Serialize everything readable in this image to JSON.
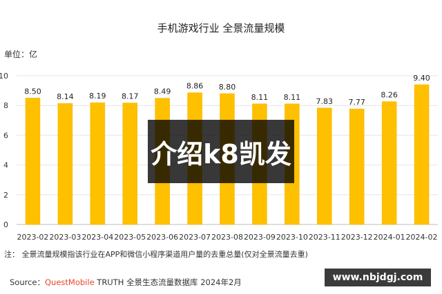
{
  "header": {
    "title": "手机游戏行业 全景流量规模",
    "unit": "单位：亿"
  },
  "footer": {
    "note": "注：  全景流量规模指该行业在APP和微信小程序渠道用户量的去重总量(仅对全景流量去重)",
    "source_prefix": "Source：",
    "source_brand": "QuestMobile",
    "source_rest": " TRUTH 全景生态流量数据库 2024年2月"
  },
  "overlay": {
    "text": "介绍k8凯发"
  },
  "badge": {
    "text": "www.nbjdgj.com"
  },
  "colors": {
    "bar": "#FFC000",
    "bar_edge": "#F5B400",
    "grid": "#e6e6e6"
  },
  "chart_data": {
    "type": "bar",
    "title": "手机游戏行业 全景流量规模",
    "ylabel": "单位：亿",
    "xlabel": "",
    "ylim": [
      0,
      10
    ],
    "yticks": [
      0,
      2,
      4,
      6,
      8,
      10
    ],
    "categories": [
      "2023-02",
      "2023-03",
      "2023-04",
      "2023-05",
      "2023-06",
      "2023-07",
      "2023-08",
      "2023-09",
      "2023-10",
      "2023-11",
      "2023-12",
      "2024-01",
      "2024-02"
    ],
    "values": [
      8.5,
      8.14,
      8.19,
      8.17,
      8.49,
      8.86,
      8.8,
      8.11,
      8.11,
      7.83,
      7.77,
      8.26,
      9.4
    ],
    "value_labels": [
      "8.50",
      "8.14",
      "8.19",
      "8.17",
      "8.49",
      "8.86",
      "8.80",
      "8.11",
      "8.11",
      "7.83",
      "7.77",
      "8.26",
      "9.40"
    ],
    "grid": true,
    "legend": "none"
  }
}
